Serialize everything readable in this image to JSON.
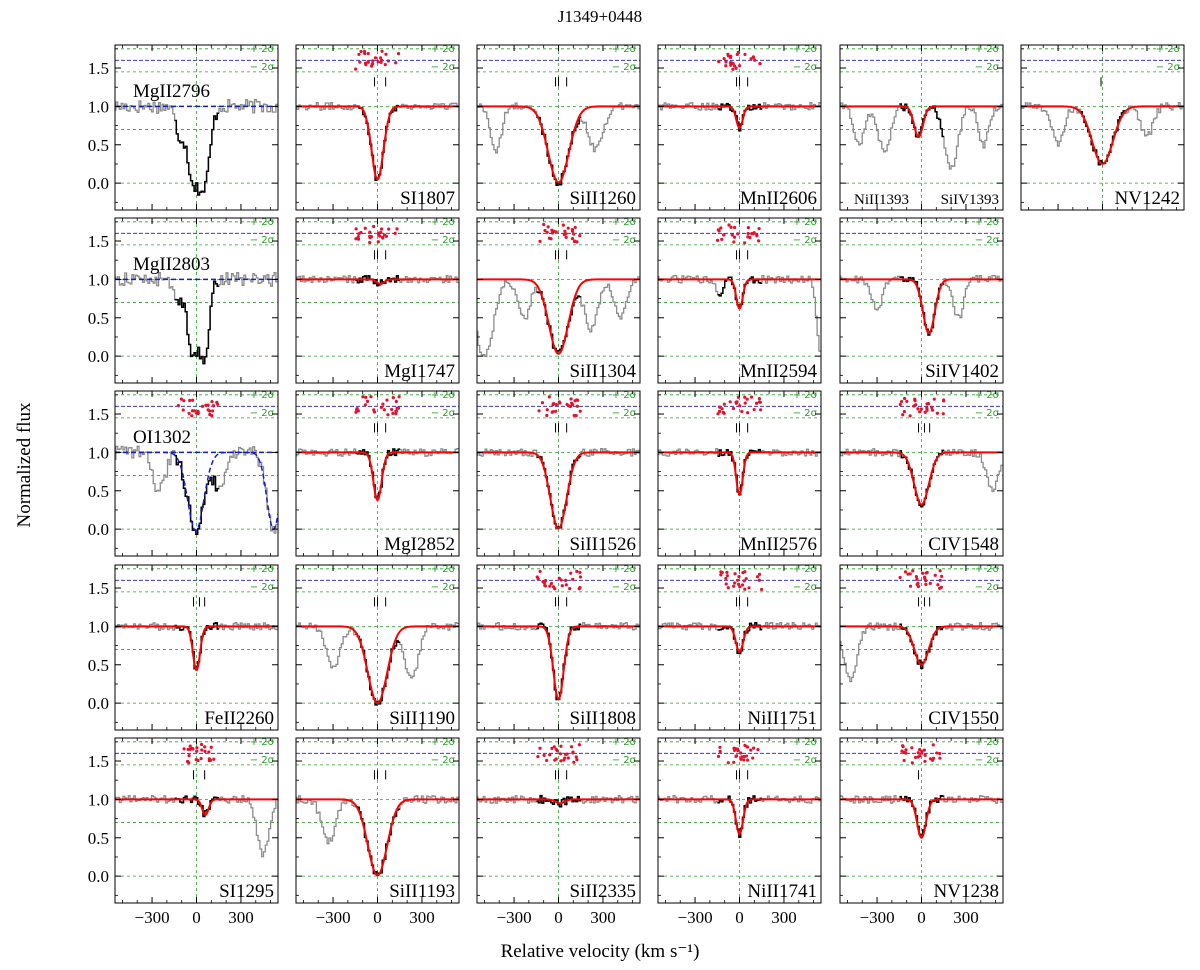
{
  "figure": {
    "title": "J1349+0448",
    "xlabel": "Relative velocity (km s⁻¹)",
    "ylabel": "Normalized flux",
    "plus_2sigma": "+ 2σ",
    "minus_2sigma": "− 2σ"
  },
  "colors": {
    "data_outside": "#8c8c8c",
    "data_fitted": "#000000",
    "model": "#ff0000",
    "residuals": "#e8102a",
    "continuum_dashed": "#1a1acc",
    "guides": "#2ca02c"
  },
  "chart_data": {
    "type": "line",
    "xlim": [
      -550,
      550
    ],
    "ylim": [
      -0.35,
      1.8
    ],
    "xticks": [
      -300,
      0,
      300
    ],
    "yticks": [
      0.0,
      0.5,
      1.0,
      1.5
    ],
    "ytick_labels": [
      "0.0",
      "0.5",
      "1.0",
      "1.5"
    ],
    "grid": "green dashed at y=0, 0.7, 1.0, 1.45 and x=0",
    "residual_level": 1.6,
    "component_velocities": [
      -20,
      0,
      55
    ],
    "panels": [
      {
        "label": "MgII2796",
        "row": 0,
        "col": 0,
        "label_pos": "top",
        "model": "continuum_dashed",
        "residuals": false,
        "ticks": [],
        "absorption": [
          {
            "v": -20,
            "depth": 0.95,
            "width": 45
          },
          {
            "v": 60,
            "depth": 0.85,
            "width": 35
          },
          {
            "v": -120,
            "depth": 0.3,
            "width": 25
          }
        ]
      },
      {
        "label": "SI1807",
        "row": 0,
        "col": 1,
        "label_pos": "bottom",
        "model": "fit",
        "residuals": true,
        "ticks": [
          -20,
          55
        ],
        "absorption": [
          {
            "v": 0,
            "depth": 0.95,
            "width": 40
          }
        ]
      },
      {
        "label": "SiII1260",
        "row": 0,
        "col": 2,
        "label_pos": "bottom",
        "model": "fit",
        "residuals": false,
        "ticks": [
          -20,
          0,
          55
        ],
        "absorption": [
          {
            "v": 0,
            "depth": 0.99,
            "width": 70
          },
          {
            "v": -420,
            "depth": 0.6,
            "width": 35
          },
          {
            "v": 250,
            "depth": 0.55,
            "width": 50
          }
        ]
      },
      {
        "label": "MnII2606",
        "row": 0,
        "col": 3,
        "label_pos": "bottom",
        "model": "fit",
        "residuals": true,
        "ticks": [
          -20,
          0,
          55
        ],
        "absorption": [
          {
            "v": 0,
            "depth": 0.28,
            "width": 22
          }
        ]
      },
      {
        "label": "NiII1393",
        "row": 0,
        "col": 4,
        "label_pos": "bottom-left",
        "extra_label": "SiIV1393",
        "model": "fit",
        "residuals": false,
        "ticks": [],
        "absorption": [
          {
            "v": -420,
            "depth": 0.5,
            "width": 35
          },
          {
            "v": -250,
            "depth": 0.6,
            "width": 40
          },
          {
            "v": -20,
            "depth": 0.4,
            "width": 30
          },
          {
            "v": 200,
            "depth": 0.8,
            "width": 45
          },
          {
            "v": 420,
            "depth": 0.5,
            "width": 35
          }
        ]
      },
      {
        "label": "NV1242",
        "row": 0,
        "col": 5,
        "label_pos": "bottom",
        "model": "fit",
        "residuals": false,
        "ticks": [
          -10
        ],
        "absorption": [
          {
            "v": 0,
            "depth": 0.75,
            "width": 70
          },
          {
            "v": -300,
            "depth": 0.5,
            "width": 40
          },
          {
            "v": 300,
            "depth": 0.4,
            "width": 40
          }
        ]
      },
      {
        "label": "MgII2803",
        "row": 1,
        "col": 0,
        "label_pos": "top",
        "model": "continuum_dashed",
        "residuals": false,
        "ticks": [],
        "absorption": [
          {
            "v": -20,
            "depth": 0.98,
            "width": 40
          },
          {
            "v": 60,
            "depth": 0.9,
            "width": 30
          },
          {
            "v": -130,
            "depth": 0.3,
            "width": 25
          }
        ]
      },
      {
        "label": "MgI1747",
        "row": 1,
        "col": 1,
        "label_pos": "bottom",
        "model": "fit",
        "residuals": true,
        "ticks": [
          -20,
          0,
          55
        ],
        "absorption": [
          {
            "v": 20,
            "depth": 0.06,
            "width": 25
          }
        ]
      },
      {
        "label": "SiII1304",
        "row": 1,
        "col": 2,
        "label_pos": "bottom",
        "model": "fit",
        "residuals": true,
        "ticks": [
          -20,
          0,
          55
        ],
        "absorption": [
          {
            "v": 0,
            "depth": 0.97,
            "width": 65
          },
          {
            "v": -500,
            "depth": 1.0,
            "width": 60
          },
          {
            "v": -230,
            "depth": 0.5,
            "width": 40
          },
          {
            "v": 220,
            "depth": 0.65,
            "width": 45
          },
          {
            "v": 420,
            "depth": 0.5,
            "width": 40
          }
        ]
      },
      {
        "label": "MnII2594",
        "row": 1,
        "col": 3,
        "label_pos": "bottom",
        "model": "fit",
        "residuals": true,
        "ticks": [
          -20,
          0,
          55
        ],
        "absorption": [
          {
            "v": 0,
            "depth": 0.38,
            "width": 22
          },
          {
            "v": 550,
            "depth": 1.0,
            "width": 25
          },
          {
            "v": -140,
            "depth": 0.25,
            "width": 20
          }
        ]
      },
      {
        "label": "SiIV1402",
        "row": 1,
        "col": 4,
        "label_pos": "bottom",
        "model": "fit",
        "residuals": false,
        "ticks": [],
        "absorption": [
          {
            "v": -300,
            "depth": 0.4,
            "width": 35
          },
          {
            "v": 50,
            "depth": 0.7,
            "width": 40
          },
          {
            "v": 250,
            "depth": 0.5,
            "width": 35
          }
        ]
      },
      {
        "label": "OI1302",
        "row": 2,
        "col": 0,
        "label_pos": "top",
        "model": "continuum_dashed",
        "residuals": true,
        "ticks": [],
        "absorption": [
          {
            "v": -5,
            "depth": 1.02,
            "width": 55
          },
          {
            "v": -250,
            "depth": 0.5,
            "width": 40
          },
          {
            "v": 160,
            "depth": 0.5,
            "width": 40
          },
          {
            "v": 520,
            "depth": 1.0,
            "width": 45
          }
        ]
      },
      {
        "label": "MgI2852",
        "row": 2,
        "col": 1,
        "label_pos": "bottom",
        "model": "fit",
        "residuals": true,
        "ticks": [
          -20,
          0,
          55
        ],
        "absorption": [
          {
            "v": 0,
            "depth": 0.62,
            "width": 28
          }
        ]
      },
      {
        "label": "SiII1526",
        "row": 2,
        "col": 2,
        "label_pos": "bottom",
        "model": "fit",
        "residuals": true,
        "ticks": [
          -20,
          0,
          55
        ],
        "absorption": [
          {
            "v": 0,
            "depth": 0.99,
            "width": 55
          }
        ]
      },
      {
        "label": "MnII2576",
        "row": 2,
        "col": 3,
        "label_pos": "bottom",
        "model": "fit",
        "residuals": true,
        "ticks": [
          -20,
          0,
          55
        ],
        "absorption": [
          {
            "v": 0,
            "depth": 0.55,
            "width": 22
          }
        ]
      },
      {
        "label": "CIV1548",
        "row": 2,
        "col": 4,
        "label_pos": "bottom",
        "model": "fit",
        "residuals": true,
        "ticks": [
          -20,
          20,
          55
        ],
        "absorption": [
          {
            "v": 0,
            "depth": 0.68,
            "width": 50
          },
          {
            "v": 480,
            "depth": 0.5,
            "width": 40
          }
        ]
      },
      {
        "label": "FeII2260",
        "row": 3,
        "col": 0,
        "label_pos": "bottom",
        "model": "fit",
        "residuals": false,
        "ticks": [
          -20,
          20,
          55
        ],
        "absorption": [
          {
            "v": 0,
            "depth": 0.57,
            "width": 24
          }
        ]
      },
      {
        "label": "SiII1190",
        "row": 3,
        "col": 1,
        "label_pos": "bottom",
        "model": "fit",
        "residuals": false,
        "ticks": [
          -20,
          0,
          55
        ],
        "absorption": [
          {
            "v": 0,
            "depth": 1.0,
            "width": 65
          },
          {
            "v": -300,
            "depth": 0.55,
            "width": 45
          },
          {
            "v": 230,
            "depth": 0.7,
            "width": 45
          }
        ]
      },
      {
        "label": "SiII1808",
        "row": 3,
        "col": 2,
        "label_pos": "bottom",
        "model": "fit",
        "residuals": true,
        "ticks": [
          -20,
          0,
          55
        ],
        "absorption": [
          {
            "v": 0,
            "depth": 0.95,
            "width": 35
          }
        ]
      },
      {
        "label": "NiII1751",
        "row": 3,
        "col": 3,
        "label_pos": "bottom",
        "model": "fit",
        "residuals": true,
        "ticks": [
          -20,
          0,
          55
        ],
        "absorption": [
          {
            "v": 0,
            "depth": 0.33,
            "width": 25
          }
        ]
      },
      {
        "label": "CIV1550",
        "row": 3,
        "col": 4,
        "label_pos": "bottom",
        "model": "fit",
        "residuals": true,
        "ticks": [
          -20,
          20,
          55
        ],
        "absorption": [
          {
            "v": 0,
            "depth": 0.5,
            "width": 48
          },
          {
            "v": -480,
            "depth": 0.7,
            "width": 45
          }
        ]
      },
      {
        "label": "SI1295",
        "row": 4,
        "col": 0,
        "label_pos": "bottom",
        "model": "fit",
        "residuals": true,
        "ticks": [
          -20,
          55
        ],
        "absorption": [
          {
            "v": 60,
            "depth": 0.2,
            "width": 22
          },
          {
            "v": 450,
            "depth": 0.7,
            "width": 40
          }
        ]
      },
      {
        "label": "SiII1193",
        "row": 4,
        "col": 1,
        "label_pos": "bottom",
        "model": "fit",
        "residuals": false,
        "ticks": [
          -20,
          0,
          55
        ],
        "absorption": [
          {
            "v": 0,
            "depth": 0.99,
            "width": 65
          },
          {
            "v": -330,
            "depth": 0.55,
            "width": 45
          }
        ]
      },
      {
        "label": "SiII2335",
        "row": 4,
        "col": 2,
        "label_pos": "bottom",
        "model": "fit",
        "residuals": true,
        "ticks": [
          -20,
          0,
          55
        ],
        "absorption": [
          {
            "v": 10,
            "depth": 0.05,
            "width": 30
          }
        ]
      },
      {
        "label": "NiII1741",
        "row": 4,
        "col": 3,
        "label_pos": "bottom",
        "model": "fit",
        "residuals": true,
        "ticks": [
          -20,
          0,
          55
        ],
        "absorption": [
          {
            "v": 0,
            "depth": 0.45,
            "width": 24
          }
        ]
      },
      {
        "label": "NV1238",
        "row": 4,
        "col": 4,
        "label_pos": "bottom",
        "model": "fit",
        "residuals": true,
        "ticks": [
          -20
        ],
        "absorption": [
          {
            "v": 0,
            "depth": 0.5,
            "width": 30
          }
        ]
      }
    ]
  }
}
